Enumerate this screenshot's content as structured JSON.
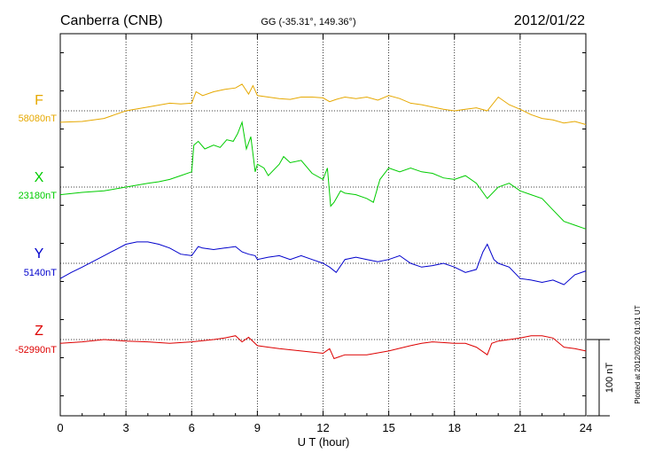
{
  "header": {
    "station": "Canberra (CNB)",
    "coords": "GG (-35.31°, 149.36°)",
    "date": "2012/01/22"
  },
  "plotted_note": "Plotted at 2012/02/22 01:01  UT",
  "scale_bar": {
    "label": "100 nT",
    "value_nT": 100
  },
  "colors": {
    "F": "#e6a800",
    "X": "#00cc00",
    "Y": "#0000cc",
    "Z": "#dd0000",
    "axis": "#000000"
  },
  "chart_data": {
    "type": "line",
    "xlabel": "U T (hour)",
    "xlim": [
      0,
      24
    ],
    "x_ticks": [
      "0",
      "3",
      "6",
      "9",
      "12",
      "15",
      "18",
      "21",
      "24"
    ],
    "units": "nT",
    "series": [
      {
        "name": "F",
        "baseline_label": "58080nT",
        "baseline": 58080,
        "x": [
          0,
          1,
          2,
          3,
          4,
          5,
          5.5,
          6,
          6.2,
          6.5,
          7,
          7.5,
          8,
          8.3,
          8.6,
          8.8,
          9,
          9.5,
          10,
          10.5,
          11,
          11.5,
          12,
          12.3,
          12.6,
          13,
          13.5,
          14,
          14.5,
          15,
          15.5,
          16,
          16.5,
          17,
          17.5,
          18,
          18.5,
          19,
          19.5,
          20,
          20.5,
          21,
          21.5,
          22,
          22.5,
          23,
          23.5,
          24
        ],
        "values": [
          -15,
          -14,
          -10,
          0,
          5,
          10,
          9,
          10,
          25,
          20,
          25,
          28,
          30,
          35,
          22,
          33,
          20,
          18,
          16,
          15,
          18,
          18,
          17,
          12,
          15,
          18,
          16,
          18,
          14,
          20,
          16,
          10,
          8,
          5,
          2,
          0,
          2,
          4,
          0,
          18,
          8,
          2,
          -5,
          -10,
          -12,
          -16,
          -14,
          -18
        ]
      },
      {
        "name": "X",
        "baseline_label": "23180nT",
        "baseline": 23180,
        "x": [
          0,
          1,
          2,
          3,
          4,
          4.5,
          5,
          5.5,
          6,
          6.1,
          6.3,
          6.6,
          7,
          7.3,
          7.6,
          7.9,
          8.1,
          8.3,
          8.5,
          8.7,
          8.9,
          9,
          9.3,
          9.5,
          10,
          10.2,
          10.5,
          11,
          11.5,
          12,
          12.2,
          12.35,
          12.5,
          12.8,
          13,
          13.5,
          14,
          14.3,
          14.6,
          15,
          15.5,
          16,
          16.5,
          17,
          17.5,
          18,
          18.5,
          19,
          19.5,
          20,
          20.5,
          21,
          21.5,
          22,
          22.5,
          23,
          23.5,
          24
        ],
        "values": [
          -10,
          -7,
          -5,
          0,
          5,
          7,
          10,
          15,
          20,
          55,
          60,
          50,
          55,
          52,
          62,
          60,
          70,
          85,
          50,
          66,
          20,
          30,
          25,
          15,
          30,
          40,
          32,
          35,
          18,
          10,
          25,
          -25,
          -20,
          -5,
          -8,
          -10,
          -15,
          -20,
          10,
          25,
          20,
          25,
          20,
          18,
          12,
          10,
          15,
          5,
          -15,
          0,
          5,
          -5,
          -10,
          -15,
          -30,
          -45,
          -50,
          -55
        ]
      },
      {
        "name": "Y",
        "baseline_label": "5140nT",
        "baseline": 5140,
        "x": [
          0,
          0.5,
          1,
          2,
          3,
          3.5,
          4,
          4.5,
          5,
          5.5,
          6,
          6.3,
          6.5,
          7,
          7.5,
          8,
          8.3,
          8.6,
          8.9,
          9,
          9.5,
          10,
          10.5,
          11,
          11.5,
          12,
          12.3,
          12.6,
          13,
          13.5,
          14,
          14.5,
          15,
          15.5,
          16,
          16.5,
          17,
          17.5,
          18,
          18.5,
          19,
          19.3,
          19.5,
          19.8,
          20,
          20.5,
          21,
          21.5,
          22,
          22.5,
          23,
          23.5,
          24
        ],
        "values": [
          -20,
          -12,
          -5,
          10,
          25,
          28,
          28,
          25,
          20,
          12,
          10,
          22,
          20,
          18,
          20,
          22,
          15,
          12,
          10,
          5,
          8,
          10,
          5,
          10,
          5,
          0,
          -5,
          -12,
          5,
          8,
          5,
          2,
          5,
          10,
          0,
          -5,
          -3,
          0,
          -5,
          -12,
          -8,
          15,
          25,
          5,
          0,
          -5,
          -20,
          -22,
          -25,
          -22,
          -28,
          -15,
          -10
        ]
      },
      {
        "name": "Z",
        "baseline_label": "-52990nT",
        "baseline": -52990,
        "x": [
          0,
          1,
          2,
          3,
          4,
          5,
          6,
          7,
          7.5,
          8,
          8.3,
          8.6,
          9,
          9.5,
          10,
          11,
          12,
          12.3,
          12.5,
          13,
          14,
          15,
          16,
          16.5,
          17,
          18,
          18.5,
          19,
          19.5,
          19.7,
          20,
          20.5,
          21,
          21.5,
          22,
          22.5,
          23,
          23.5,
          24
        ],
        "values": [
          -5,
          -3,
          0,
          -2,
          -3,
          -5,
          -3,
          0,
          2,
          5,
          -3,
          3,
          -8,
          -10,
          -12,
          -15,
          -18,
          -12,
          -25,
          -20,
          -20,
          -15,
          -8,
          -5,
          -3,
          -5,
          -5,
          -10,
          -20,
          -5,
          -2,
          0,
          2,
          5,
          5,
          2,
          -10,
          -12,
          -15
        ]
      }
    ]
  }
}
